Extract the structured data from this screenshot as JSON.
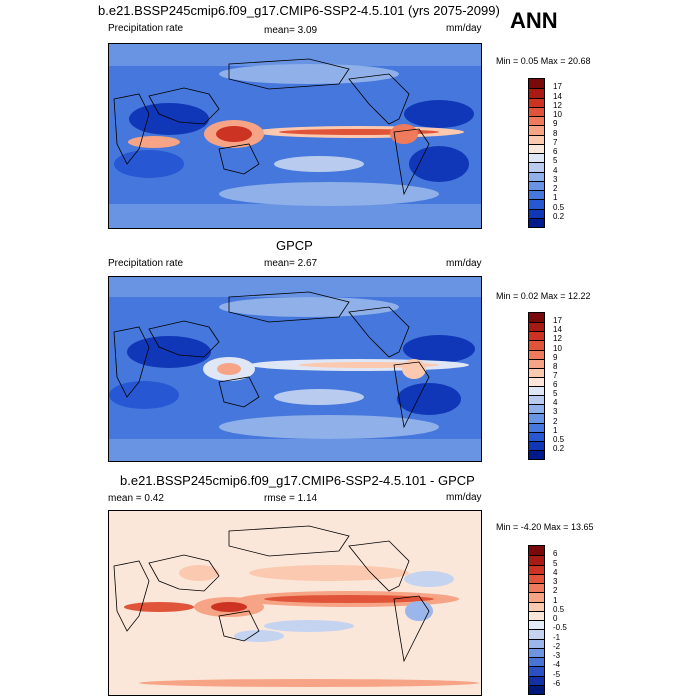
{
  "header": {
    "title": "b.e21.BSSP245cmip6.f09_g17.CMIP6-SSP2-4.5.101 (yrs 2075-2099)",
    "season": "ANN"
  },
  "panels": [
    {
      "id": "model",
      "title": "",
      "left_label": "Precipitation rate",
      "center_label": "mean=  3.09",
      "right_label": "mm/day",
      "minmax": "Min =   0.05 Max =  20.68",
      "colorbar_labels": [
        "17",
        "14",
        "12",
        "10",
        "9",
        "8",
        "7",
        "6",
        "5",
        "4",
        "3",
        "2",
        "1",
        "0.5",
        "0.2"
      ],
      "colors": [
        "#7a0a0a",
        "#a81a14",
        "#cc3322",
        "#e0553a",
        "#ef7b5c",
        "#f7a385",
        "#fbc9b0",
        "#fbe6da",
        "#dfe6f5",
        "#b9cbee",
        "#8fb0e8",
        "#6894e3",
        "#4577dc",
        "#2757d2",
        "#1037b8",
        "#001a8e"
      ]
    },
    {
      "id": "obs",
      "title": "GPCP",
      "left_label": "Precipitation rate",
      "center_label": "mean=  2.67",
      "right_label": "mm/day",
      "minmax": "Min =   0.02 Max =  12.22",
      "colorbar_labels": [
        "17",
        "14",
        "12",
        "10",
        "9",
        "8",
        "7",
        "6",
        "5",
        "4",
        "3",
        "2",
        "1",
        "0.5",
        "0.2"
      ],
      "colors": [
        "#7a0a0a",
        "#a81a14",
        "#cc3322",
        "#e0553a",
        "#ef7b5c",
        "#f7a385",
        "#fbc9b0",
        "#fbe6da",
        "#dfe6f5",
        "#b9cbee",
        "#8fb0e8",
        "#6894e3",
        "#4577dc",
        "#2757d2",
        "#1037b8",
        "#001a8e"
      ]
    },
    {
      "id": "diff",
      "title": "b.e21.BSSP245cmip6.f09_g17.CMIP6-SSP2-4.5.101 - GPCP",
      "left_label": "mean =   0.42",
      "center_label": "rmse =   1.14",
      "right_label": "mm/day",
      "minmax": "Min =  -4.20 Max =  13.65",
      "colorbar_labels": [
        "6",
        "5",
        "4",
        "3",
        "2",
        "1",
        "0.5",
        "0",
        "-0.5",
        "-1",
        "-2",
        "-3",
        "-4",
        "-5",
        "-6"
      ],
      "colors": [
        "#7a0a0a",
        "#a81a14",
        "#cc3322",
        "#e0553a",
        "#ef7b5c",
        "#f7a385",
        "#fbc9b0",
        "#fbe6da",
        "#e3ecf7",
        "#c4d4f0",
        "#9bb6ea",
        "#6f95e2",
        "#4a73d6",
        "#2a50c4",
        "#1530a4",
        "#00187a"
      ]
    }
  ]
}
